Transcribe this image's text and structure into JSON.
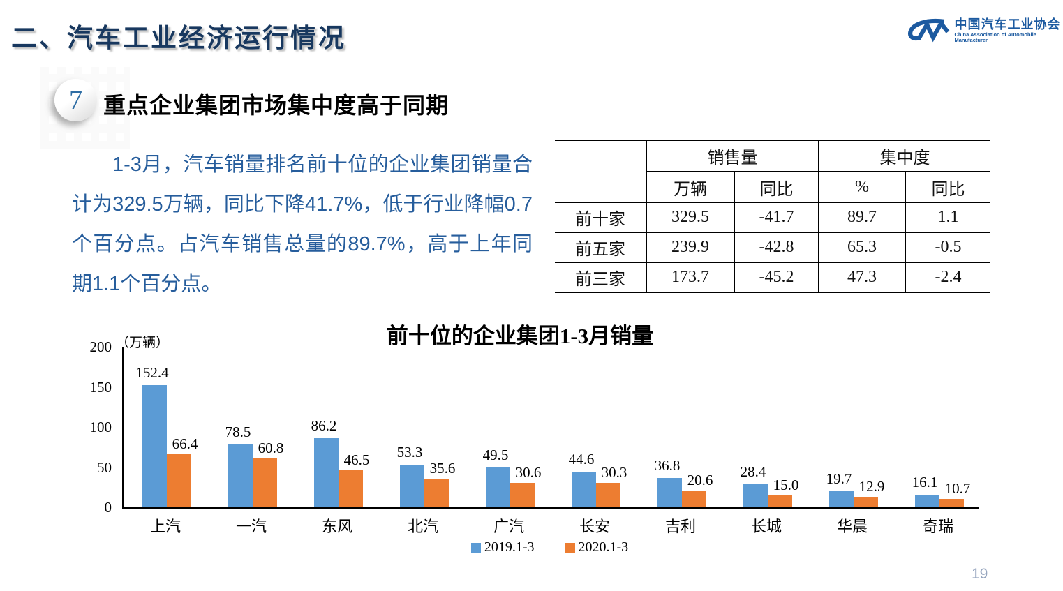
{
  "page": {
    "title": "二、汽车工业经济运行情况",
    "page_number": "19"
  },
  "logo": {
    "name_cn": "中国汽车工业协会",
    "name_en": "China Association of Automobile Manufacturer",
    "color": "#1C5AA0"
  },
  "section": {
    "badge": "7",
    "heading": "重点企业集团市场集中度高于同期",
    "paragraph": "1-3月，汽车销量排名前十位的企业集团销量合计为329.5万辆，同比下降41.7%，低于行业降幅0.7个百分点。占汽车销售总量的89.7%，高于上年同期1.1个百分点。"
  },
  "table": {
    "corner": "",
    "col_groups": [
      "销售量",
      "集中度"
    ],
    "sub_headers": [
      "万辆",
      "同比",
      "%",
      "同比"
    ],
    "rows": [
      {
        "label": "前十家",
        "values": [
          "329.5",
          "-41.7",
          "89.7",
          "1.1"
        ]
      },
      {
        "label": "前五家",
        "values": [
          "239.9",
          "-42.8",
          "65.3",
          "-0.5"
        ]
      },
      {
        "label": "前三家",
        "values": [
          "173.7",
          "-45.2",
          "47.3",
          "-2.4"
        ]
      }
    ]
  },
  "chart_data": {
    "type": "bar",
    "title": "前十位的企业集团1-3月销量",
    "unit_label": "（万辆）",
    "categories": [
      "上汽",
      "一汽",
      "东风",
      "北汽",
      "广汽",
      "长安",
      "吉利",
      "长城",
      "华晨",
      "奇瑞"
    ],
    "series": [
      {
        "name": "2019.1-3",
        "color": "#5B9BD5",
        "values": [
          152.4,
          78.5,
          86.2,
          53.3,
          49.5,
          44.6,
          36.8,
          28.4,
          19.7,
          16.1
        ]
      },
      {
        "name": "2020.1-3",
        "color": "#ED7D31",
        "values": [
          66.4,
          60.8,
          46.5,
          35.6,
          30.6,
          30.3,
          20.6,
          15.0,
          12.9,
          10.7
        ]
      }
    ],
    "y_ticks": [
      200,
      150,
      100,
      50,
      0
    ],
    "ylim": [
      0,
      200
    ],
    "xlabel": "",
    "ylabel": "（万辆）",
    "grid": false,
    "legend_position": "bottom"
  }
}
